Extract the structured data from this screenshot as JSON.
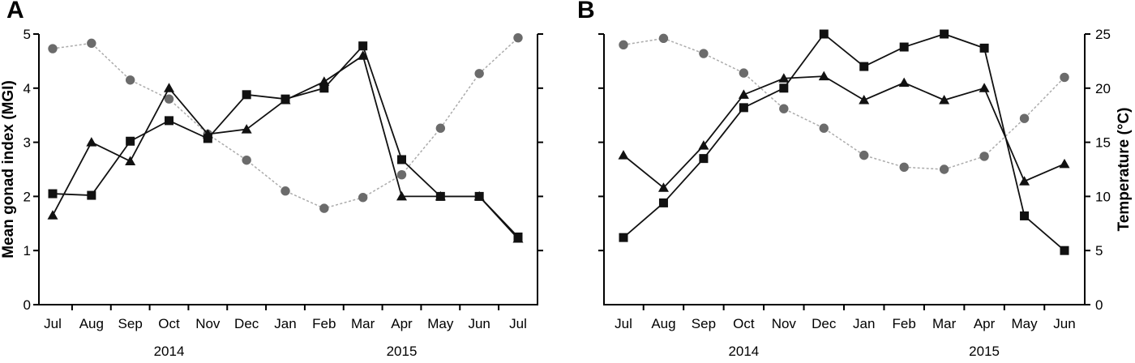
{
  "colors": {
    "axis": "#000000",
    "black_series": "#111111",
    "gray_marker": "#6b6b6b",
    "gray_dash_line": "#ababab"
  },
  "chart_data": [
    {
      "type": "line",
      "panel_label": "A",
      "title": "",
      "xlabel": "",
      "ylabel": "Mean gonad index (MGI)",
      "ylabel_side": "left",
      "ylim": [
        0,
        5
      ],
      "yticks": [
        0,
        1,
        2,
        3,
        4,
        5
      ],
      "yticks_unlabeled_opposite": [
        1,
        2,
        3,
        4,
        5
      ],
      "grid": false,
      "legend_position": "none",
      "categories": [
        "Jul",
        "Aug",
        "Sep",
        "Oct",
        "Nov",
        "Dec",
        "Jan",
        "Feb",
        "Mar",
        "Apr",
        "May",
        "Jun",
        "Jul"
      ],
      "year_labels": [
        {
          "text": "2014",
          "category_index": 3
        },
        {
          "text": "2015",
          "category_index": 9
        }
      ],
      "series": [
        {
          "name": "gray-circles",
          "marker": "circle",
          "marker_color": "#6b6b6b",
          "line_color": "#ababab",
          "dash": "3 2.5",
          "values": [
            4.73,
            4.83,
            4.15,
            3.8,
            3.15,
            2.67,
            2.1,
            1.78,
            1.98,
            2.4,
            3.26,
            4.27,
            4.93
          ]
        },
        {
          "name": "filled-triangles",
          "marker": "triangle",
          "marker_color": "#111111",
          "line_color": "#111111",
          "dash": null,
          "values": [
            1.65,
            3.0,
            2.65,
            4.0,
            3.15,
            3.24,
            3.78,
            4.12,
            4.6,
            2.0,
            2.0,
            2.0,
            1.22
          ]
        },
        {
          "name": "filled-squares",
          "marker": "square",
          "marker_color": "#111111",
          "line_color": "#111111",
          "dash": null,
          "values": [
            2.05,
            2.02,
            3.02,
            3.4,
            3.07,
            3.88,
            3.8,
            4.0,
            4.78,
            2.68,
            2.0,
            2.0,
            1.25
          ]
        }
      ]
    },
    {
      "type": "line",
      "panel_label": "B",
      "title": "",
      "xlabel": "",
      "ylabel": "Temperature (°C)",
      "ylabel_side": "right",
      "ylim": [
        0,
        25
      ],
      "yticks": [
        0,
        5,
        10,
        15,
        20,
        25
      ],
      "yticks_unlabeled_opposite": [
        5,
        10,
        15,
        20,
        25
      ],
      "grid": false,
      "legend_position": "none",
      "categories": [
        "Jul",
        "Aug",
        "Sep",
        "Oct",
        "Nov",
        "Dec",
        "Jan",
        "Feb",
        "Mar",
        "Apr",
        "May",
        "Jun"
      ],
      "year_labels": [
        {
          "text": "2014",
          "category_index": 3
        },
        {
          "text": "2015",
          "category_index": 9
        }
      ],
      "series": [
        {
          "name": "gray-circles",
          "marker": "circle",
          "marker_color": "#6b6b6b",
          "line_color": "#ababab",
          "dash": "3 2.5",
          "values": [
            24.0,
            24.6,
            23.2,
            21.4,
            18.1,
            16.3,
            13.8,
            12.7,
            12.5,
            13.7,
            17.2,
            21.0
          ]
        },
        {
          "name": "filled-triangles",
          "marker": "triangle",
          "marker_color": "#111111",
          "line_color": "#111111",
          "dash": null,
          "values": [
            13.8,
            10.8,
            14.7,
            19.4,
            20.9,
            21.1,
            18.9,
            20.5,
            18.9,
            20.0,
            11.4,
            13.0
          ]
        },
        {
          "name": "filled-squares",
          "marker": "square",
          "marker_color": "#111111",
          "line_color": "#111111",
          "dash": null,
          "values": [
            6.2,
            9.4,
            13.5,
            18.2,
            20.0,
            25.0,
            22.0,
            23.8,
            25.0,
            23.7,
            8.2,
            5.0
          ]
        }
      ]
    }
  ]
}
